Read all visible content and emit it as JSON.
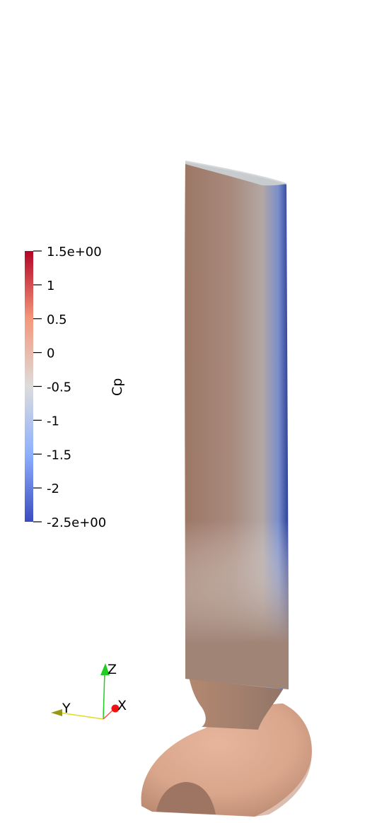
{
  "colorbar": {
    "title": "Cp",
    "ticks": [
      {
        "value": 1.5,
        "label": "1.5e+00"
      },
      {
        "value": 1,
        "label": "1"
      },
      {
        "value": 0.5,
        "label": "0.5"
      },
      {
        "value": 0,
        "label": "0"
      },
      {
        "value": -0.5,
        "label": "-0.5"
      },
      {
        "value": -1,
        "label": "-1"
      },
      {
        "value": -1.5,
        "label": "-1.5"
      },
      {
        "value": -2,
        "label": "-2"
      },
      {
        "value": -2.5,
        "label": "-2.5e+00"
      }
    ],
    "range": [
      -2.5,
      1.5
    ],
    "colors": {
      "low": "#3b4cc0",
      "mid": "#dddddd",
      "high": "#b40426"
    }
  },
  "axes": {
    "z": "Z",
    "y": "Y",
    "x": "X"
  },
  "axes_colors": {
    "z": "#22cc22",
    "y": "#dddd22",
    "x": "#ee1111"
  }
}
